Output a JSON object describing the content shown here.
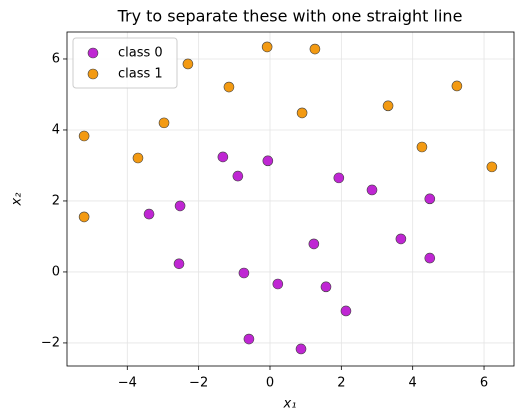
{
  "chart_data": {
    "type": "scatter",
    "title": "Try to separate these with one straight line",
    "xlabel": "x₁",
    "ylabel": "x₂",
    "xlim": [
      -5.69,
      6.84
    ],
    "ylim": [
      -2.65,
      6.76
    ],
    "xticks": [
      {
        "value": -4,
        "label": "−4"
      },
      {
        "value": -2,
        "label": "−2"
      },
      0,
      2,
      4,
      6
    ],
    "yticks": [
      {
        "value": -2,
        "label": "−2"
      },
      0,
      2,
      4,
      6
    ],
    "grid": true,
    "legend": "upper left",
    "series": [
      {
        "name": "class 0",
        "color": "#bf26d3",
        "x": [
          -1.32,
          -0.06,
          -0.9,
          1.93,
          2.86,
          -3.39,
          -2.52,
          4.48,
          3.67,
          1.23,
          4.48,
          -2.55,
          -0.73,
          0.22,
          1.57,
          2.13,
          -0.59,
          0.87
        ],
        "values": [
          3.24,
          3.13,
          2.7,
          2.65,
          2.31,
          1.63,
          1.86,
          2.06,
          0.93,
          0.79,
          0.39,
          0.23,
          -0.03,
          -0.34,
          -0.42,
          -1.1,
          -1.89,
          -2.17
        ]
      },
      {
        "name": "class 1",
        "color": "#f39a12",
        "x": [
          -5.21,
          -5.21,
          -3.7,
          -2.97,
          -2.3,
          -1.15,
          -0.08,
          1.26,
          0.9,
          3.31,
          4.26,
          5.24,
          6.22
        ],
        "values": [
          3.83,
          1.55,
          3.21,
          4.2,
          5.86,
          5.21,
          6.34,
          6.28,
          4.48,
          4.68,
          3.52,
          5.24,
          2.96
        ]
      }
    ]
  }
}
